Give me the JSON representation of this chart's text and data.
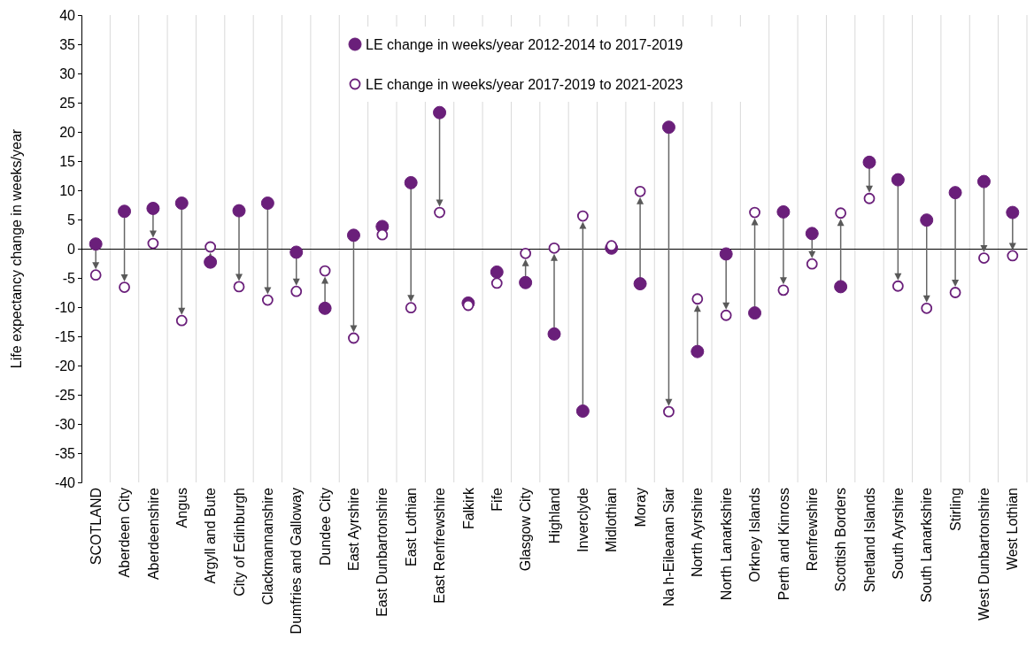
{
  "chart_data": {
    "type": "scatter",
    "ylabel": "Life expectancy change in weeks/year",
    "categories": [
      "SCOTLAND",
      "Aberdeen City",
      "Aberdeenshire",
      "Angus",
      "Argyll and Bute",
      "City of Edinburgh",
      "Clackmannanshire",
      "Dumfries and Galloway",
      "Dundee City",
      "East Ayrshire",
      "East Dunbartonshire",
      "East Lothian",
      "East Renfrewshire",
      "Falkirk",
      "Fife",
      "Glasgow City",
      "Highland",
      "Inverclyde",
      "Midlothian",
      "Moray",
      "Na h-Eileanan Siar",
      "North Ayrshire",
      "North Lanarkshire",
      "Orkney Islands",
      "Perth and Kinross",
      "Renfrewshire",
      "Scottish Borders",
      "Shetland Islands",
      "South Ayrshire",
      "South Lanarkshire",
      "Stirling",
      "West Dunbartonshire",
      "West Lothian"
    ],
    "series": [
      {
        "name": "LE change in weeks/year 2012-2014 to 2017-2019",
        "color": "#6a1f7a",
        "marker": "circle",
        "values": [
          0.8,
          6.4,
          6.9,
          7.8,
          -2.3,
          6.5,
          7.8,
          -0.6,
          -10.2,
          2.3,
          3.8,
          11.3,
          23.3,
          -9.3,
          -4,
          -5.8,
          -14.6,
          -27.8,
          0.1,
          -6,
          20.8,
          -17.6,
          -0.9,
          -11,
          6.3,
          2.6,
          -6.5,
          14.8,
          11.8,
          4.9,
          9.6,
          11.5,
          6.2
        ]
      },
      {
        "name": "LE change in weeks/year 2017-2019 to 2021-2023",
        "color": "#6a1f7a",
        "marker": "open-circle",
        "values": [
          -4.5,
          -6.6,
          0.9,
          -12.3,
          0.3,
          -6.5,
          -8.8,
          -7.3,
          -3.8,
          -15.3,
          2.4,
          -10.1,
          6.2,
          -9.7,
          -5.9,
          -0.8,
          0.1,
          5.6,
          0.5,
          9.8,
          -27.9,
          -8.6,
          -11.4,
          6.2,
          -7.1,
          -2.6,
          6.1,
          8.6,
          -6.4,
          -10.2,
          -7.5,
          -1.6,
          -1.2
        ]
      }
    ],
    "ylim": [
      -40,
      40
    ],
    "yticks": [
      -40,
      -35,
      -30,
      -25,
      -20,
      -15,
      -10,
      -5,
      0,
      5,
      10,
      15,
      20,
      25,
      30,
      35,
      40
    ],
    "grid": "x",
    "legend": "top"
  }
}
